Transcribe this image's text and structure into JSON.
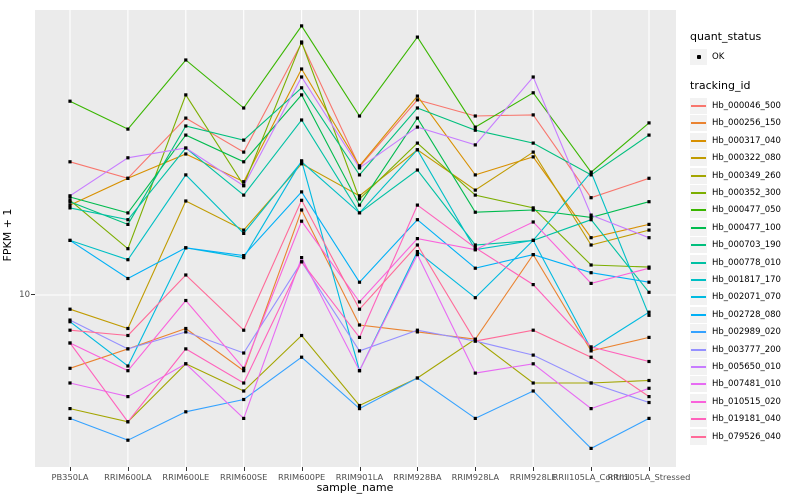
{
  "y_axis": {
    "title": "FPKM + 1",
    "tick_label": "10"
  },
  "x_axis": {
    "title": "sample_name"
  },
  "legend": {
    "quant_status": {
      "title": "quant_status",
      "items": [
        {
          "label": "OK",
          "marker": "black-point"
        }
      ]
    },
    "tracking_id": {
      "title": "tracking_id"
    }
  },
  "chart_data": {
    "type": "line",
    "title": "",
    "xlabel": "sample_name",
    "ylabel": "FPKM + 1",
    "y_scale": "log10",
    "y_breaks": [
      10
    ],
    "ylim": [
      2.9,
      78
    ],
    "grid": "white-on-gray-panel",
    "legend_position": "right",
    "marker": "small-black-square",
    "x_categories": [
      "PB350LA",
      "RRIM600LA",
      "RRIM600LE",
      "RRIM600SE",
      "RRIM600PE",
      "RRIM901LA",
      "RRIM928BA",
      "RRIM928LA",
      "RRIM928LE",
      "RRII105LA_Control",
      "RRII105LA_Stressed"
    ],
    "series": [
      {
        "name": "Hb_000046_500",
        "color": "#F8766D",
        "values": [
          26.9,
          23.8,
          37.2,
          28.9,
          65.0,
          25.9,
          42.6,
          37.8,
          38.1,
          20.6,
          23.8
        ]
      },
      {
        "name": "Hb_000256_150",
        "color": "#EA8331",
        "values": [
          5.8,
          6.7,
          7.8,
          5.7,
          18.8,
          8.0,
          7.6,
          7.2,
          13.5,
          6.6,
          7.3
        ]
      },
      {
        "name": "Hb_000317_040",
        "color": "#D89000",
        "values": [
          19.5,
          23.8,
          28.5,
          23.2,
          53.6,
          26.1,
          43.8,
          24.4,
          27.9,
          15.3,
          16.9
        ]
      },
      {
        "name": "Hb_000322_080",
        "color": "#C09B00",
        "values": [
          9.0,
          7.8,
          20.1,
          16.2,
          26.5,
          20.9,
          29.4,
          21.8,
          28.9,
          14.5,
          16.2
        ]
      },
      {
        "name": "Hb_000349_260",
        "color": "#A3A500",
        "values": [
          4.3,
          3.9,
          6.0,
          4.9,
          7.4,
          4.4,
          5.4,
          7.2,
          5.2,
          5.2,
          5.3
        ]
      },
      {
        "name": "Hb_000352_300",
        "color": "#7CAE00",
        "values": [
          20.2,
          14.1,
          44.2,
          22.6,
          65.5,
          20.4,
          30.9,
          21.0,
          19.1,
          12.5,
          12.3
        ]
      },
      {
        "name": "Hb_000477_050",
        "color": "#39B600",
        "values": [
          42.2,
          34.3,
          57.3,
          40.1,
          73.8,
          37.8,
          67.9,
          34.8,
          44.9,
          24.9,
          35.9
        ]
      },
      {
        "name": "Hb_000477_100",
        "color": "#00BB4E",
        "values": [
          20.7,
          18.4,
          32.8,
          26.9,
          44.2,
          19.5,
          37.2,
          18.5,
          18.8,
          17.8,
          20.0
        ]
      },
      {
        "name": "Hb_000703_190",
        "color": "#00BF7D",
        "values": [
          20.0,
          16.9,
          35.1,
          31.6,
          46.6,
          24.4,
          40.1,
          34.0,
          30.9,
          24.4,
          32.8
        ]
      },
      {
        "name": "Hb_000778_010",
        "color": "#00C1A3",
        "values": [
          19.1,
          17.5,
          29.8,
          21.0,
          36.7,
          18.4,
          25.3,
          14.5,
          15.0,
          17.5,
          10.2
        ]
      },
      {
        "name": "Hb_001817_170",
        "color": "#00BFC4",
        "values": [
          15.0,
          13.0,
          24.4,
          15.8,
          26.9,
          18.4,
          29.4,
          14.0,
          15.0,
          24.9,
          8.6
        ]
      },
      {
        "name": "Hb_002071_070",
        "color": "#00BAE0",
        "values": [
          8.2,
          5.9,
          14.2,
          13.2,
          27.1,
          5.7,
          13.8,
          9.8,
          15.0,
          6.7,
          8.8
        ]
      },
      {
        "name": "Hb_002728_080",
        "color": "#00B0F6",
        "values": [
          15.0,
          11.3,
          14.2,
          13.4,
          21.5,
          11.0,
          17.5,
          12.2,
          13.5,
          11.8,
          11.0
        ]
      },
      {
        "name": "Hb_002989_020",
        "color": "#35A2FF",
        "values": [
          4.0,
          3.4,
          4.2,
          4.6,
          6.3,
          4.3,
          5.4,
          4.0,
          4.9,
          3.2,
          4.0
        ]
      },
      {
        "name": "Hb_003777_200",
        "color": "#9590FF",
        "values": [
          8.3,
          6.7,
          7.6,
          6.5,
          12.8,
          6.6,
          7.7,
          7.1,
          6.4,
          5.2,
          4.5
        ]
      },
      {
        "name": "Hb_005650_010",
        "color": "#C77CFF",
        "values": [
          20.9,
          27.7,
          29.8,
          22.5,
          50.5,
          25.7,
          34.8,
          30.5,
          50.5,
          18.1,
          15.3
        ]
      },
      {
        "name": "Hb_007481_010",
        "color": "#E76BF3",
        "values": [
          5.2,
          4.7,
          6.0,
          4.0,
          13.2,
          5.7,
          13.5,
          5.6,
          6.0,
          4.3,
          5.0
        ]
      },
      {
        "name": "Hb_010515_020",
        "color": "#FA62DB",
        "values": [
          7.0,
          5.7,
          9.6,
          5.8,
          17.3,
          9.5,
          15.2,
          14.0,
          17.2,
          10.9,
          12.2
        ]
      },
      {
        "name": "Hb_019181_040",
        "color": "#FF62BC",
        "values": [
          7.0,
          3.9,
          6.7,
          5.2,
          12.8,
          7.3,
          19.5,
          14.2,
          10.8,
          6.8,
          6.1
        ]
      },
      {
        "name": "Hb_079526_040",
        "color": "#FF6A98",
        "values": [
          7.7,
          7.4,
          11.6,
          7.7,
          20.2,
          9.0,
          14.5,
          7.1,
          7.7,
          6.3,
          4.7
        ]
      }
    ]
  }
}
